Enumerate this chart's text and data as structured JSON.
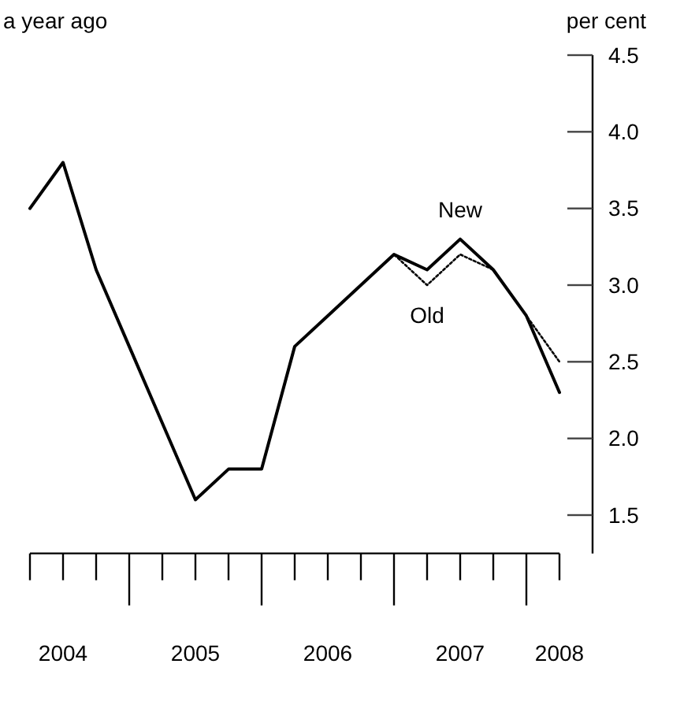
{
  "chart_data": {
    "type": "line",
    "title": "a year ago",
    "ylabel": "per cent",
    "categories": [
      null,
      "2004",
      null,
      null,
      null,
      "2005",
      null,
      null,
      null,
      "2006",
      null,
      null,
      null,
      "2007",
      null,
      null,
      "2008"
    ],
    "series": [
      {
        "name": "New",
        "color": "#000000",
        "line_style": "solid",
        "values": [
          3.5,
          3.8,
          3.1,
          2.6,
          2.1,
          1.6,
          1.8,
          1.8,
          2.6,
          2.8,
          3.0,
          3.2,
          3.1,
          3.3,
          3.1,
          2.8,
          2.3
        ]
      },
      {
        "name": "Old",
        "color": "#000000",
        "line_style": "dotted",
        "values": [
          3.5,
          3.8,
          3.1,
          2.6,
          2.1,
          1.6,
          1.8,
          1.8,
          2.6,
          2.8,
          3.0,
          3.2,
          3.0,
          3.2,
          3.1,
          2.8,
          2.5
        ]
      }
    ],
    "ylim": [
      1.25,
      4.5
    ],
    "yticks": [
      {
        "value": 1.5,
        "label": "1.5"
      },
      {
        "value": 2,
        "label": "2.0"
      },
      {
        "value": 2.5,
        "label": "2.5"
      },
      {
        "value": 3,
        "label": "3.0"
      },
      {
        "value": 3.5,
        "label": "3.5"
      },
      {
        "value": 4,
        "label": "4.0"
      },
      {
        "value": 4.5,
        "label": "4.5"
      }
    ],
    "grid": false,
    "legend": false,
    "marker": "none"
  }
}
